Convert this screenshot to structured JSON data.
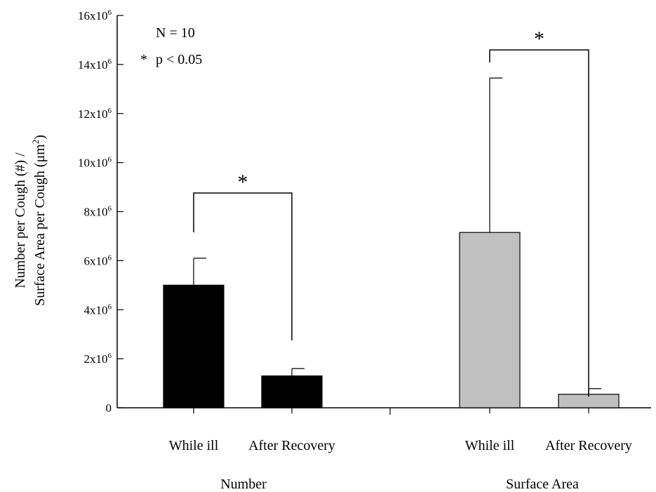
{
  "chart_data": {
    "type": "bar",
    "ylim": [
      0,
      16000000
    ],
    "yticks": [
      {
        "value": 0,
        "mant": "0",
        "exp": ""
      },
      {
        "value": 2000000,
        "mant": "2x10",
        "exp": "6"
      },
      {
        "value": 4000000,
        "mant": "4x10",
        "exp": "6"
      },
      {
        "value": 6000000,
        "mant": "6x10",
        "exp": "6"
      },
      {
        "value": 8000000,
        "mant": "8x10",
        "exp": "6"
      },
      {
        "value": 10000000,
        "mant": "10x10",
        "exp": "6"
      },
      {
        "value": 12000000,
        "mant": "12x10",
        "exp": "6"
      },
      {
        "value": 14000000,
        "mant": "14x10",
        "exp": "6"
      },
      {
        "value": 16000000,
        "mant": "16x10",
        "exp": "6"
      }
    ],
    "ylabel": {
      "line1": "Number per Cough (#) /",
      "line2_pre": "Surface Area per Cough (μm",
      "line2_sup": "2",
      "line2_post": ")"
    },
    "groups": [
      {
        "name": "Number",
        "color": "#000000",
        "bars": [
          {
            "category": "While ill",
            "value": 5000000,
            "error": 1100000
          },
          {
            "category": "After Recovery",
            "value": 1300000,
            "error": 300000
          }
        ],
        "significance": "*"
      },
      {
        "name": "Surface Area",
        "color": "#c0c0c0",
        "bars": [
          {
            "category": "While ill",
            "value": 7150000,
            "error": 6300000
          },
          {
            "category": "After Recovery",
            "value": 550000,
            "error": 230000
          }
        ],
        "significance": "*"
      }
    ],
    "annotations": [
      "N = 10",
      "*",
      "p < 0.05"
    ],
    "grid": false,
    "legend": "none"
  }
}
